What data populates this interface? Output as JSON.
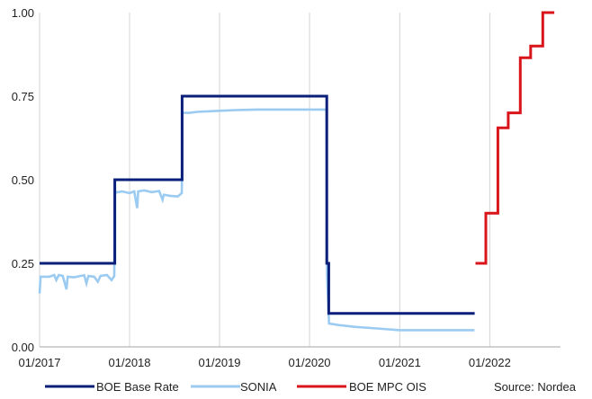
{
  "chart_data": {
    "type": "line",
    "title": "",
    "xlabel": "",
    "ylabel": "",
    "xlim": [
      "2017-01-01",
      "2022-10-15"
    ],
    "ylim": [
      0,
      1.0
    ],
    "x_ticks": [
      "2017-01-01",
      "2018-01-01",
      "2019-01-01",
      "2020-01-01",
      "2021-01-01",
      "2022-01-01"
    ],
    "x_tick_labels": [
      "01/2017",
      "01/2018",
      "01/2019",
      "01/2020",
      "01/2021",
      "01/2022"
    ],
    "y_ticks": [
      0,
      0.25,
      0.5,
      0.75,
      1.0
    ],
    "y_tick_labels": [
      "0.00",
      "0.25",
      "0.50",
      "0.75",
      "1.00"
    ],
    "grid": "vertical",
    "legend_position": "bottom",
    "source": "Source: Nordea",
    "series": [
      {
        "name": "BOE Base Rate",
        "color": "#0a1f7a",
        "step": true,
        "points": [
          [
            "2017-01-01",
            0.25
          ],
          [
            "2017-11-02",
            0.5
          ],
          [
            "2018-08-02",
            0.75
          ],
          [
            "2020-03-11",
            0.25
          ],
          [
            "2020-03-19",
            0.1
          ],
          [
            "2021-11-01",
            0.1
          ]
        ]
      },
      {
        "name": "SONIA",
        "color": "#9ccbf2",
        "step": false,
        "points": [
          [
            "2017-01-01",
            0.16
          ],
          [
            "2017-01-05",
            0.21
          ],
          [
            "2017-02-10",
            0.21
          ],
          [
            "2017-03-01",
            0.215
          ],
          [
            "2017-03-10",
            0.2
          ],
          [
            "2017-03-20",
            0.215
          ],
          [
            "2017-04-05",
            0.212
          ],
          [
            "2017-04-20",
            0.172
          ],
          [
            "2017-04-25",
            0.21
          ],
          [
            "2017-05-20",
            0.208
          ],
          [
            "2017-06-15",
            0.212
          ],
          [
            "2017-07-01",
            0.214
          ],
          [
            "2017-07-10",
            0.19
          ],
          [
            "2017-07-18",
            0.212
          ],
          [
            "2017-08-10",
            0.21
          ],
          [
            "2017-08-25",
            0.195
          ],
          [
            "2017-09-05",
            0.212
          ],
          [
            "2017-10-01",
            0.215
          ],
          [
            "2017-10-20",
            0.2
          ],
          [
            "2017-10-31",
            0.212
          ],
          [
            "2017-11-03",
            0.466
          ],
          [
            "2017-11-10",
            0.462
          ],
          [
            "2017-12-01",
            0.465
          ],
          [
            "2018-01-01",
            0.46
          ],
          [
            "2018-01-20",
            0.465
          ],
          [
            "2018-02-01",
            0.415
          ],
          [
            "2018-02-05",
            0.465
          ],
          [
            "2018-03-01",
            0.468
          ],
          [
            "2018-04-01",
            0.463
          ],
          [
            "2018-05-01",
            0.466
          ],
          [
            "2018-05-15",
            0.44
          ],
          [
            "2018-05-20",
            0.455
          ],
          [
            "2018-06-15",
            0.452
          ],
          [
            "2018-07-15",
            0.45
          ],
          [
            "2018-08-01",
            0.46
          ],
          [
            "2018-08-03",
            0.7
          ],
          [
            "2018-09-01",
            0.7
          ],
          [
            "2018-10-01",
            0.703
          ],
          [
            "2018-12-01",
            0.705
          ],
          [
            "2019-03-01",
            0.708
          ],
          [
            "2019-06-01",
            0.71
          ],
          [
            "2019-09-01",
            0.71
          ],
          [
            "2019-12-01",
            0.71
          ],
          [
            "2020-02-01",
            0.71
          ],
          [
            "2020-03-10",
            0.71
          ],
          [
            "2020-03-12",
            0.215
          ],
          [
            "2020-03-20",
            0.07
          ],
          [
            "2020-05-01",
            0.065
          ],
          [
            "2020-07-01",
            0.06
          ],
          [
            "2020-10-01",
            0.055
          ],
          [
            "2021-01-01",
            0.05
          ],
          [
            "2021-04-01",
            0.05
          ],
          [
            "2021-07-01",
            0.05
          ],
          [
            "2021-10-31",
            0.05
          ]
        ]
      },
      {
        "name": "BOE MPC OIS",
        "color": "#d9141b",
        "step": true,
        "points": [
          [
            "2021-11-04",
            0.25
          ],
          [
            "2021-12-16",
            0.4
          ],
          [
            "2022-02-03",
            0.655
          ],
          [
            "2022-03-17",
            0.7
          ],
          [
            "2022-05-05",
            0.865
          ],
          [
            "2022-06-16",
            0.9
          ],
          [
            "2022-08-04",
            1.0
          ],
          [
            "2022-09-20",
            1.0
          ]
        ]
      }
    ]
  }
}
